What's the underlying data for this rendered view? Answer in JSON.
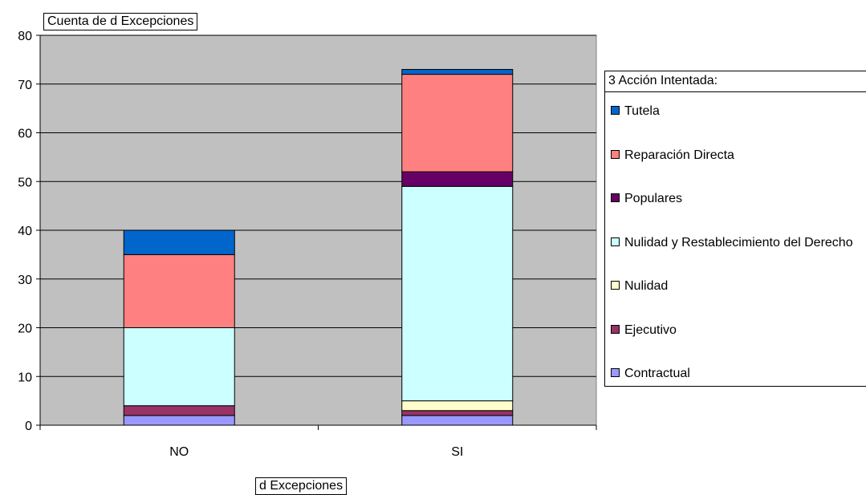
{
  "chart_data": {
    "type": "bar",
    "stacked": true,
    "title": "Cuenta de d  Excepciones",
    "xlabel": "d  Excepciones",
    "ylabel": "",
    "categories": [
      "NO",
      "SI"
    ],
    "ylim": [
      0,
      80
    ],
    "yticks": [
      0,
      10,
      20,
      30,
      40,
      50,
      60,
      70,
      80
    ],
    "grid": true,
    "legend_title": "3 Acción Intentada:",
    "legend_position": "right",
    "series": [
      {
        "name": "Contractual",
        "values": [
          2,
          2
        ],
        "color": "#9999ff"
      },
      {
        "name": "Ejecutivo",
        "values": [
          2,
          1
        ],
        "color": "#993366"
      },
      {
        "name": "Nulidad",
        "values": [
          0,
          2
        ],
        "color": "#ffffcc"
      },
      {
        "name": "Nulidad  y Restablecimiento del Derecho",
        "values": [
          16,
          44
        ],
        "color": "#ccffff"
      },
      {
        "name": "Populares",
        "values": [
          0,
          3
        ],
        "color": "#660066"
      },
      {
        "name": "Reparación Directa",
        "values": [
          15,
          20
        ],
        "color": "#ff8080"
      },
      {
        "name": "Tutela",
        "values": [
          5,
          1
        ],
        "color": "#0066cc"
      }
    ]
  }
}
